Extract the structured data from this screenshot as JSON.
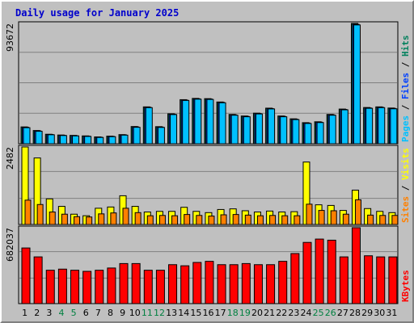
{
  "title": "Daily usage for January 2025",
  "colors": {
    "background": "#c0c0c0",
    "title": "#0000cc",
    "hits": "#00805c",
    "files": "#0040ff",
    "pages": "#00c0ff",
    "visits": "#ffff00",
    "sites": "#ff8000",
    "kbytes": "#ff0000",
    "weekday_label": "#000000",
    "weekend_label": "#008040",
    "grid": "#808080"
  },
  "chart_data": [
    {
      "type": "bar",
      "panel": "hits-files-pages",
      "ymax_label": "93672",
      "ylim": [
        0,
        93672
      ],
      "categories": [
        "1",
        "2",
        "3",
        "4",
        "5",
        "6",
        "7",
        "8",
        "9",
        "10",
        "11",
        "12",
        "13",
        "14",
        "15",
        "16",
        "17",
        "18",
        "19",
        "20",
        "21",
        "22",
        "23",
        "24",
        "25",
        "26",
        "27",
        "28",
        "29",
        "30",
        "31"
      ],
      "weekend": [
        4,
        5,
        11,
        12,
        18,
        19,
        25,
        26
      ],
      "series": [
        {
          "name": "Hits",
          "values": [
            13100,
            10300,
            7400,
            6800,
            6500,
            6100,
            5300,
            5900,
            7100,
            13400,
            28700,
            13300,
            23300,
            34300,
            35300,
            35100,
            32500,
            22800,
            21600,
            23800,
            27700,
            21600,
            19400,
            16400,
            17100,
            22800,
            27000,
            93672,
            28200,
            28700,
            27800
          ]
        },
        {
          "name": "Files",
          "values": [
            12800,
            10000,
            7200,
            6600,
            6300,
            5900,
            5100,
            5700,
            6900,
            13100,
            28400,
            13000,
            23000,
            34000,
            35000,
            34800,
            32200,
            22500,
            21300,
            23500,
            27400,
            21300,
            19100,
            16100,
            16800,
            22500,
            26700,
            93000,
            27900,
            28400,
            27500
          ]
        },
        {
          "name": "Pages",
          "values": [
            12500,
            9700,
            7000,
            6400,
            6100,
            5700,
            4900,
            5500,
            6700,
            12800,
            28100,
            12700,
            22700,
            33700,
            34700,
            34500,
            31900,
            22200,
            21000,
            23200,
            27100,
            21000,
            18800,
            15800,
            16500,
            22200,
            26400,
            92500,
            27600,
            28100,
            27200
          ]
        }
      ],
      "vertical_label": [
        "Pages",
        "Files",
        "Hits"
      ]
    },
    {
      "type": "bar",
      "panel": "visits-sites",
      "ymax_label": "2482",
      "ylim": [
        0,
        2482
      ],
      "series": [
        {
          "name": "Visits",
          "values": [
            2482,
            2130,
            820,
            580,
            330,
            280,
            520,
            560,
            920,
            580,
            400,
            420,
            420,
            550,
            420,
            380,
            480,
            500,
            440,
            400,
            430,
            400,
            410,
            2000,
            630,
            610,
            450,
            1100,
            510,
            420,
            380
          ]
        },
        {
          "name": "Sites",
          "values": [
            780,
            640,
            400,
            330,
            250,
            240,
            340,
            370,
            520,
            380,
            280,
            290,
            280,
            320,
            290,
            270,
            310,
            320,
            300,
            280,
            290,
            280,
            280,
            650,
            450,
            440,
            330,
            790,
            300,
            290,
            290
          ]
        }
      ],
      "vertical_label": [
        "Sites",
        "Visits"
      ]
    },
    {
      "type": "bar",
      "panel": "kbytes",
      "ymax_label": "682037",
      "ylim": [
        0,
        682037
      ],
      "series": [
        {
          "name": "KBytes",
          "values": [
            500000,
            420000,
            300000,
            310000,
            300000,
            290000,
            300000,
            320000,
            360000,
            360000,
            300000,
            300000,
            350000,
            340000,
            370000,
            380000,
            350000,
            350000,
            360000,
            350000,
            350000,
            380000,
            450000,
            550000,
            580000,
            570000,
            420000,
            682037,
            430000,
            420000,
            420000
          ]
        }
      ],
      "vertical_label": [
        "KBytes"
      ]
    }
  ]
}
